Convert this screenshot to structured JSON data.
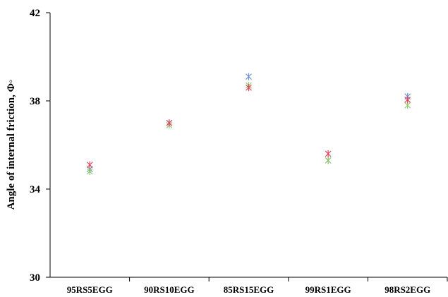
{
  "chart_data": {
    "type": "scatter",
    "title": "",
    "xlabel": "",
    "ylabel": "Angle of internal friction, Φ◦",
    "ylim": [
      30,
      42
    ],
    "yticks": [
      30,
      34,
      38,
      42
    ],
    "grid": false,
    "legend": "none",
    "marker": "asterisk",
    "categories": [
      "95RS5EGG",
      "90RS10EGG",
      "85RS15EGG",
      "99RS1EGG",
      "98RS2EGG"
    ],
    "series": [
      {
        "color": "#6b8fcf",
        "values": [
          34.9,
          37.0,
          39.1,
          35.3,
          38.2
        ]
      },
      {
        "color": "#8fc96b",
        "values": [
          34.8,
          36.9,
          38.7,
          35.3,
          37.8
        ]
      },
      {
        "color": "#e0435a",
        "values": [
          35.1,
          37.0,
          38.6,
          35.6,
          38.05
        ]
      }
    ]
  }
}
